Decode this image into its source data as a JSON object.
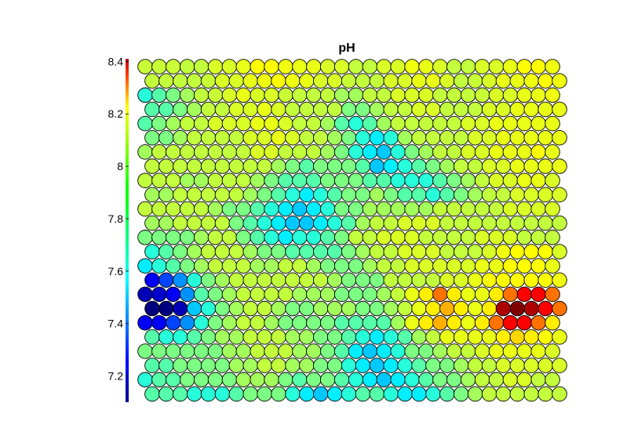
{
  "chart_data": {
    "type": "heatmap",
    "subtype": "som-hexagonal-component-plane",
    "title": "pH",
    "colormap": "jet",
    "colorbar": {
      "range": [
        7.1,
        8.41
      ],
      "ticks": [
        "7.2",
        "7.4",
        "7.6",
        "7.8",
        "8",
        "8.2",
        "8.4"
      ],
      "tick_values": [
        7.2,
        7.4,
        7.6,
        7.8,
        8.0,
        8.2,
        8.4
      ],
      "placement": "left"
    },
    "grid": {
      "rows": 24,
      "cols": 30,
      "layout": "hexagonal, odd rows shifted right"
    },
    "color_levels": {
      "0": "#00008f",
      "1": "#0000ff",
      "2": "#0050ff",
      "3": "#0090ff",
      "4": "#00d8ff",
      "5": "#00ffc8",
      "6": "#00ff80",
      "7": "#00ff00",
      "8": "#40ff00",
      "9": "#80ff00",
      "10": "#b0ff00",
      "11": "#ffff00",
      "12": "#ffd000",
      "13": "#ff8000",
      "14": "#ff0000"
    },
    "values": [
      [
        7.85,
        7.85,
        7.85,
        7.84,
        7.84,
        7.87,
        7.87,
        7.89,
        7.92,
        7.92,
        7.9,
        7.89,
        7.89,
        7.87,
        7.87,
        7.84,
        7.84,
        7.87,
        7.87,
        7.9,
        7.89,
        7.87,
        7.84,
        7.84,
        7.87,
        7.87,
        7.89,
        7.92,
        7.92,
        7.9
      ],
      [
        7.84,
        7.84,
        7.84,
        7.84,
        7.85,
        7.87,
        7.87,
        7.89,
        7.9,
        7.92,
        7.9,
        7.89,
        7.87,
        7.87,
        7.85,
        7.84,
        7.84,
        7.87,
        7.87,
        7.89,
        7.89,
        7.87,
        7.84,
        7.85,
        7.87,
        7.89,
        7.89,
        7.9,
        7.92,
        7.9
      ],
      [
        7.64,
        7.7,
        7.75,
        7.8,
        7.84,
        7.85,
        7.87,
        7.89,
        7.87,
        7.87,
        7.85,
        7.84,
        7.84,
        7.84,
        7.8,
        7.8,
        7.84,
        7.84,
        7.87,
        7.87,
        7.87,
        7.84,
        7.84,
        7.84,
        7.85,
        7.87,
        7.87,
        7.89,
        7.89,
        7.9
      ],
      [
        7.7,
        7.7,
        7.75,
        7.8,
        7.84,
        7.84,
        7.87,
        7.87,
        7.89,
        7.87,
        7.84,
        7.84,
        7.84,
        7.84,
        7.75,
        7.75,
        7.8,
        7.84,
        7.84,
        7.87,
        7.87,
        7.84,
        7.84,
        7.84,
        7.87,
        7.87,
        7.89,
        7.89,
        7.89,
        7.89
      ],
      [
        7.7,
        7.75,
        7.8,
        7.84,
        7.84,
        7.87,
        7.87,
        7.87,
        7.89,
        7.89,
        7.87,
        7.84,
        7.84,
        7.8,
        7.7,
        7.64,
        7.7,
        7.8,
        7.84,
        7.84,
        7.84,
        7.84,
        7.84,
        7.87,
        7.87,
        7.89,
        7.89,
        7.89,
        7.89,
        7.89
      ],
      [
        7.75,
        7.75,
        7.8,
        7.84,
        7.84,
        7.84,
        7.84,
        7.87,
        7.87,
        7.89,
        7.87,
        7.84,
        7.84,
        7.8,
        7.75,
        7.64,
        7.57,
        7.64,
        7.8,
        7.84,
        7.84,
        7.84,
        7.84,
        7.87,
        7.87,
        7.89,
        7.89,
        7.89,
        7.89,
        7.89
      ],
      [
        7.8,
        7.84,
        7.84,
        7.84,
        7.84,
        7.84,
        7.84,
        7.84,
        7.87,
        7.87,
        7.84,
        7.84,
        7.84,
        7.8,
        7.75,
        7.64,
        7.57,
        7.52,
        7.64,
        7.75,
        7.8,
        7.84,
        7.84,
        7.87,
        7.87,
        7.89,
        7.89,
        7.89,
        7.92,
        7.89
      ],
      [
        7.84,
        7.84,
        7.84,
        7.84,
        7.84,
        7.84,
        7.84,
        7.84,
        7.84,
        7.8,
        7.75,
        7.7,
        7.75,
        7.75,
        7.75,
        7.7,
        7.52,
        7.57,
        7.64,
        7.7,
        7.75,
        7.8,
        7.84,
        7.84,
        7.87,
        7.87,
        7.89,
        7.89,
        7.89,
        7.89
      ],
      [
        7.84,
        7.84,
        7.84,
        7.8,
        7.8,
        7.84,
        7.84,
        7.84,
        7.8,
        7.75,
        7.7,
        7.7,
        7.7,
        7.75,
        7.75,
        7.75,
        7.7,
        7.7,
        7.64,
        7.64,
        7.64,
        7.7,
        7.75,
        7.8,
        7.84,
        7.87,
        7.87,
        7.89,
        7.89,
        7.87
      ],
      [
        7.8,
        7.8,
        7.84,
        7.84,
        7.84,
        7.84,
        7.84,
        7.8,
        7.75,
        7.7,
        7.64,
        7.57,
        7.64,
        7.7,
        7.75,
        7.75,
        7.8,
        7.75,
        7.7,
        7.7,
        7.64,
        7.7,
        7.75,
        7.8,
        7.84,
        7.84,
        7.87,
        7.87,
        7.87,
        7.87
      ],
      [
        7.84,
        7.84,
        7.84,
        7.84,
        7.84,
        7.8,
        7.75,
        7.75,
        7.7,
        7.64,
        7.57,
        7.52,
        7.57,
        7.64,
        7.75,
        7.75,
        7.8,
        7.8,
        7.8,
        7.8,
        7.8,
        7.84,
        7.84,
        7.84,
        7.84,
        7.84,
        7.87,
        7.87,
        7.87,
        7.87
      ],
      [
        7.8,
        7.8,
        7.84,
        7.84,
        7.84,
        7.84,
        7.75,
        7.7,
        7.64,
        7.57,
        7.52,
        7.52,
        7.57,
        7.64,
        7.7,
        7.8,
        7.84,
        7.84,
        7.87,
        7.87,
        7.87,
        7.84,
        7.84,
        7.84,
        7.84,
        7.84,
        7.84,
        7.84,
        7.84,
        7.84
      ],
      [
        7.75,
        7.75,
        7.75,
        7.75,
        7.8,
        7.84,
        7.84,
        7.75,
        7.7,
        7.64,
        7.57,
        7.64,
        7.64,
        7.7,
        7.75,
        7.84,
        7.84,
        7.87,
        7.87,
        7.87,
        7.84,
        7.84,
        7.84,
        7.84,
        7.87,
        7.87,
        7.87,
        7.84,
        7.84,
        7.84
      ],
      [
        7.64,
        7.7,
        7.75,
        7.8,
        7.84,
        7.84,
        7.84,
        7.8,
        7.75,
        7.75,
        7.7,
        7.7,
        7.7,
        7.7,
        7.75,
        7.8,
        7.84,
        7.84,
        7.87,
        7.87,
        7.87,
        7.84,
        7.84,
        7.84,
        7.87,
        7.9,
        7.92,
        7.92,
        7.92,
        7.87
      ],
      [
        7.57,
        7.64,
        7.7,
        7.75,
        7.8,
        7.84,
        7.84,
        7.84,
        7.8,
        7.8,
        7.84,
        7.84,
        7.8,
        7.75,
        7.75,
        7.75,
        7.8,
        7.84,
        7.84,
        7.87,
        7.87,
        7.87,
        7.87,
        7.87,
        7.89,
        7.89,
        7.92,
        7.92,
        7.92,
        7.89
      ],
      [
        7.25,
        7.35,
        7.45,
        7.64,
        7.75,
        7.8,
        7.84,
        7.84,
        7.84,
        7.84,
        7.84,
        7.84,
        7.84,
        7.8,
        7.75,
        7.75,
        7.75,
        7.84,
        7.84,
        7.84,
        7.84,
        7.87,
        7.87,
        7.89,
        7.92,
        7.92,
        7.92,
        7.92,
        7.92,
        7.9
      ],
      [
        7.17,
        7.2,
        7.25,
        7.45,
        7.7,
        7.75,
        7.8,
        7.84,
        7.84,
        7.84,
        7.84,
        7.8,
        7.8,
        7.8,
        7.75,
        7.75,
        7.75,
        7.8,
        7.84,
        7.89,
        7.94,
        8.1,
        7.94,
        7.89,
        7.89,
        7.94,
        8.1,
        8.25,
        8.25,
        8.1
      ],
      [
        7.1,
        7.1,
        7.17,
        7.52,
        7.64,
        7.75,
        7.8,
        7.84,
        7.84,
        7.8,
        7.75,
        7.75,
        7.8,
        7.8,
        7.8,
        7.75,
        7.75,
        7.8,
        7.84,
        7.89,
        7.94,
        8.02,
        7.94,
        7.89,
        7.94,
        8.35,
        8.41,
        8.35,
        8.25,
        8.1
      ],
      [
        7.25,
        7.25,
        7.35,
        7.45,
        7.64,
        7.75,
        7.8,
        7.84,
        7.84,
        7.8,
        7.75,
        7.75,
        7.75,
        7.75,
        7.7,
        7.7,
        7.7,
        7.7,
        7.8,
        7.89,
        7.94,
        8.02,
        7.94,
        7.89,
        7.94,
        8.1,
        8.25,
        8.25,
        8.1,
        7.94
      ],
      [
        7.7,
        7.64,
        7.64,
        7.7,
        7.75,
        7.8,
        7.8,
        7.84,
        7.84,
        7.84,
        7.8,
        7.8,
        7.75,
        7.75,
        7.7,
        7.64,
        7.57,
        7.64,
        7.7,
        7.8,
        7.84,
        7.89,
        7.89,
        7.89,
        7.89,
        7.94,
        7.97,
        7.94,
        7.92,
        7.89
      ],
      [
        7.75,
        7.75,
        7.75,
        7.75,
        7.75,
        7.75,
        7.8,
        7.8,
        7.84,
        7.84,
        7.84,
        7.8,
        7.8,
        7.75,
        7.7,
        7.57,
        7.52,
        7.57,
        7.64,
        7.75,
        7.75,
        7.8,
        7.84,
        7.84,
        7.87,
        7.89,
        7.89,
        7.89,
        7.89,
        7.87
      ],
      [
        7.7,
        7.7,
        7.75,
        7.75,
        7.75,
        7.75,
        7.8,
        7.8,
        7.84,
        7.84,
        7.8,
        7.8,
        7.75,
        7.75,
        7.64,
        7.57,
        7.52,
        7.57,
        7.64,
        7.7,
        7.75,
        7.75,
        7.8,
        7.84,
        7.84,
        7.87,
        7.87,
        7.87,
        7.87,
        7.87
      ],
      [
        7.64,
        7.7,
        7.7,
        7.75,
        7.75,
        7.75,
        7.75,
        7.8,
        7.8,
        7.8,
        7.75,
        7.7,
        7.75,
        7.75,
        7.7,
        7.64,
        7.57,
        7.52,
        7.57,
        7.64,
        7.7,
        7.75,
        7.75,
        7.8,
        7.84,
        7.84,
        7.87,
        7.87,
        7.84,
        7.84
      ],
      [
        7.7,
        7.7,
        7.7,
        7.64,
        7.64,
        7.64,
        7.7,
        7.75,
        7.75,
        7.75,
        7.64,
        7.57,
        7.52,
        7.57,
        7.64,
        7.7,
        7.7,
        7.64,
        7.57,
        7.57,
        7.64,
        7.7,
        7.75,
        7.8,
        7.84,
        7.84,
        7.84,
        7.84,
        7.84,
        7.84
      ]
    ]
  }
}
